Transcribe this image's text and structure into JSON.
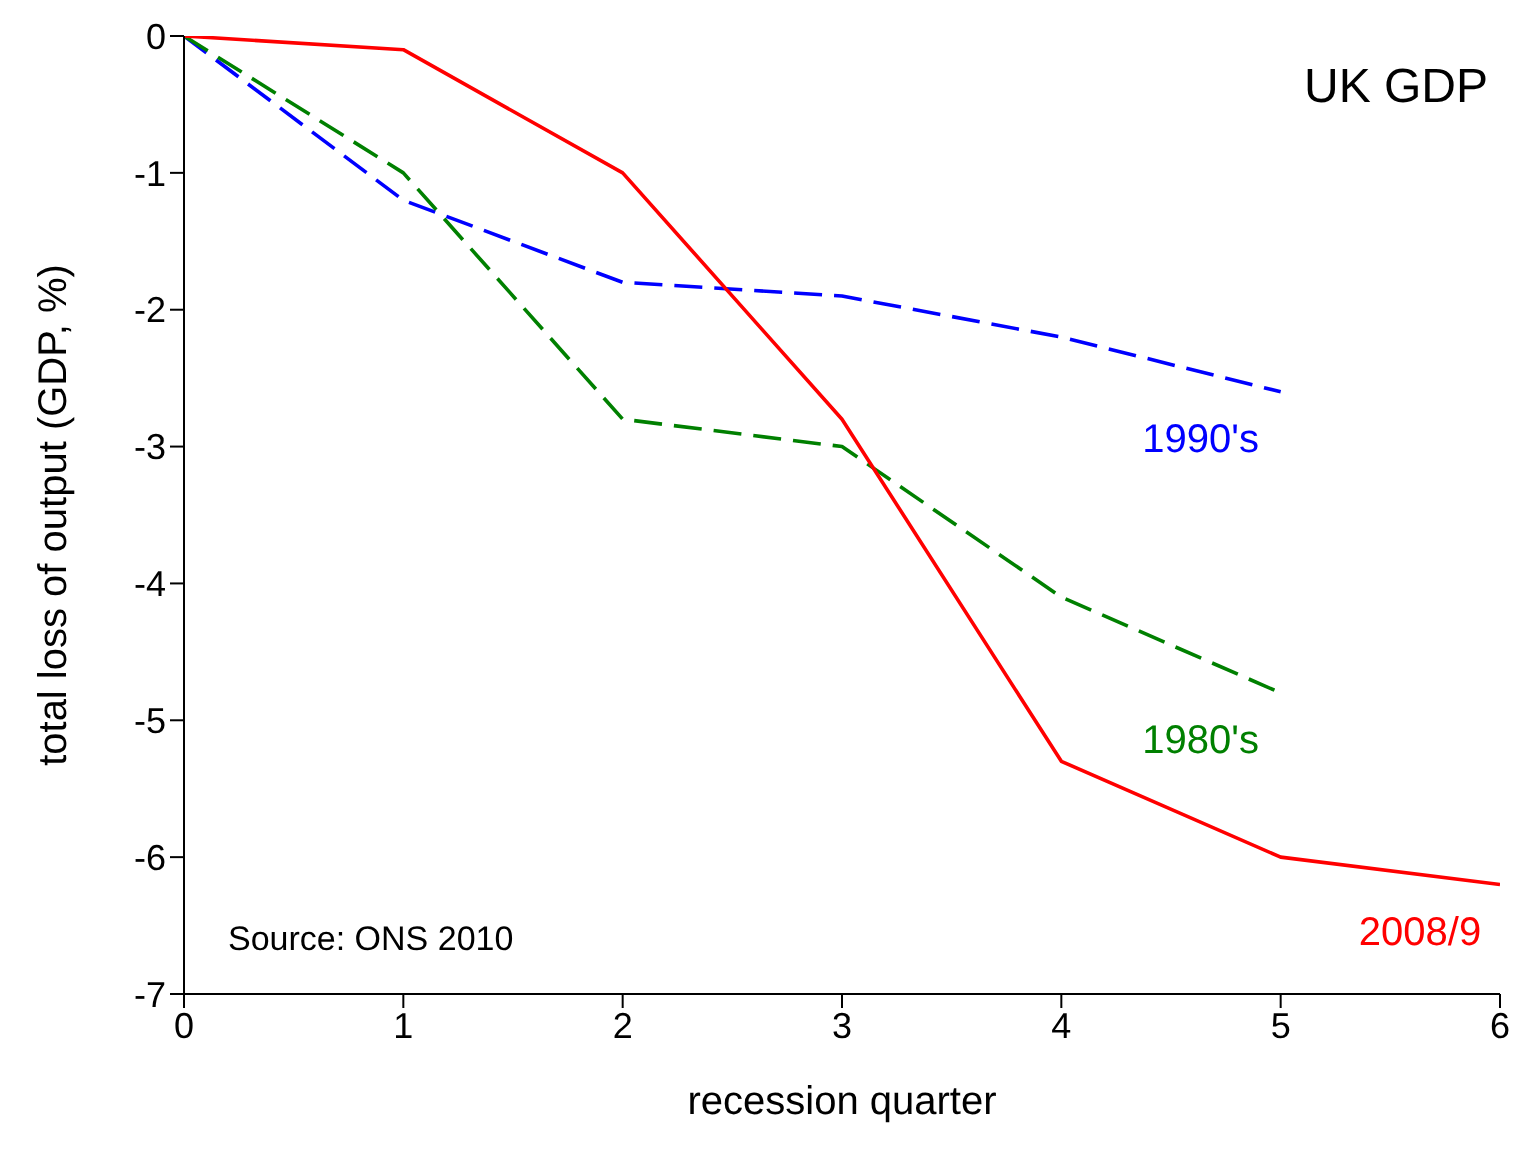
{
  "chart_data": {
    "type": "line",
    "title": "UK GDP",
    "xlabel": "recession quarter",
    "ylabel": "total loss of output (GDP, %)",
    "annotations": [
      "Source: ONS 2010"
    ],
    "x": [
      0,
      1,
      2,
      3,
      4,
      5,
      6
    ],
    "series": [
      {
        "name": "1990's",
        "color": "#0000ff",
        "line_style": "dashed",
        "values": [
          0,
          -1.2,
          -1.8,
          -1.9,
          -2.2,
          -2.6,
          null
        ]
      },
      {
        "name": "1980's",
        "color": "#008000",
        "line_style": "dashed",
        "values": [
          0,
          -1.0,
          -2.8,
          -3.0,
          -4.1,
          -4.8,
          null
        ]
      },
      {
        "name": "2008/9",
        "color": "#ff0000",
        "line_style": "solid",
        "values": [
          0,
          -0.1,
          -1.0,
          -2.8,
          -5.3,
          -6.0,
          -6.2
        ]
      }
    ],
    "xlim": [
      0,
      6
    ],
    "xticks": [
      0,
      1,
      2,
      3,
      4,
      5,
      6
    ],
    "ylim": [
      -7,
      0
    ],
    "yticks": [
      -7,
      -6,
      -5,
      -4,
      -3,
      -2,
      -1,
      0
    ],
    "grid": false,
    "legend": false,
    "marker": "none"
  }
}
